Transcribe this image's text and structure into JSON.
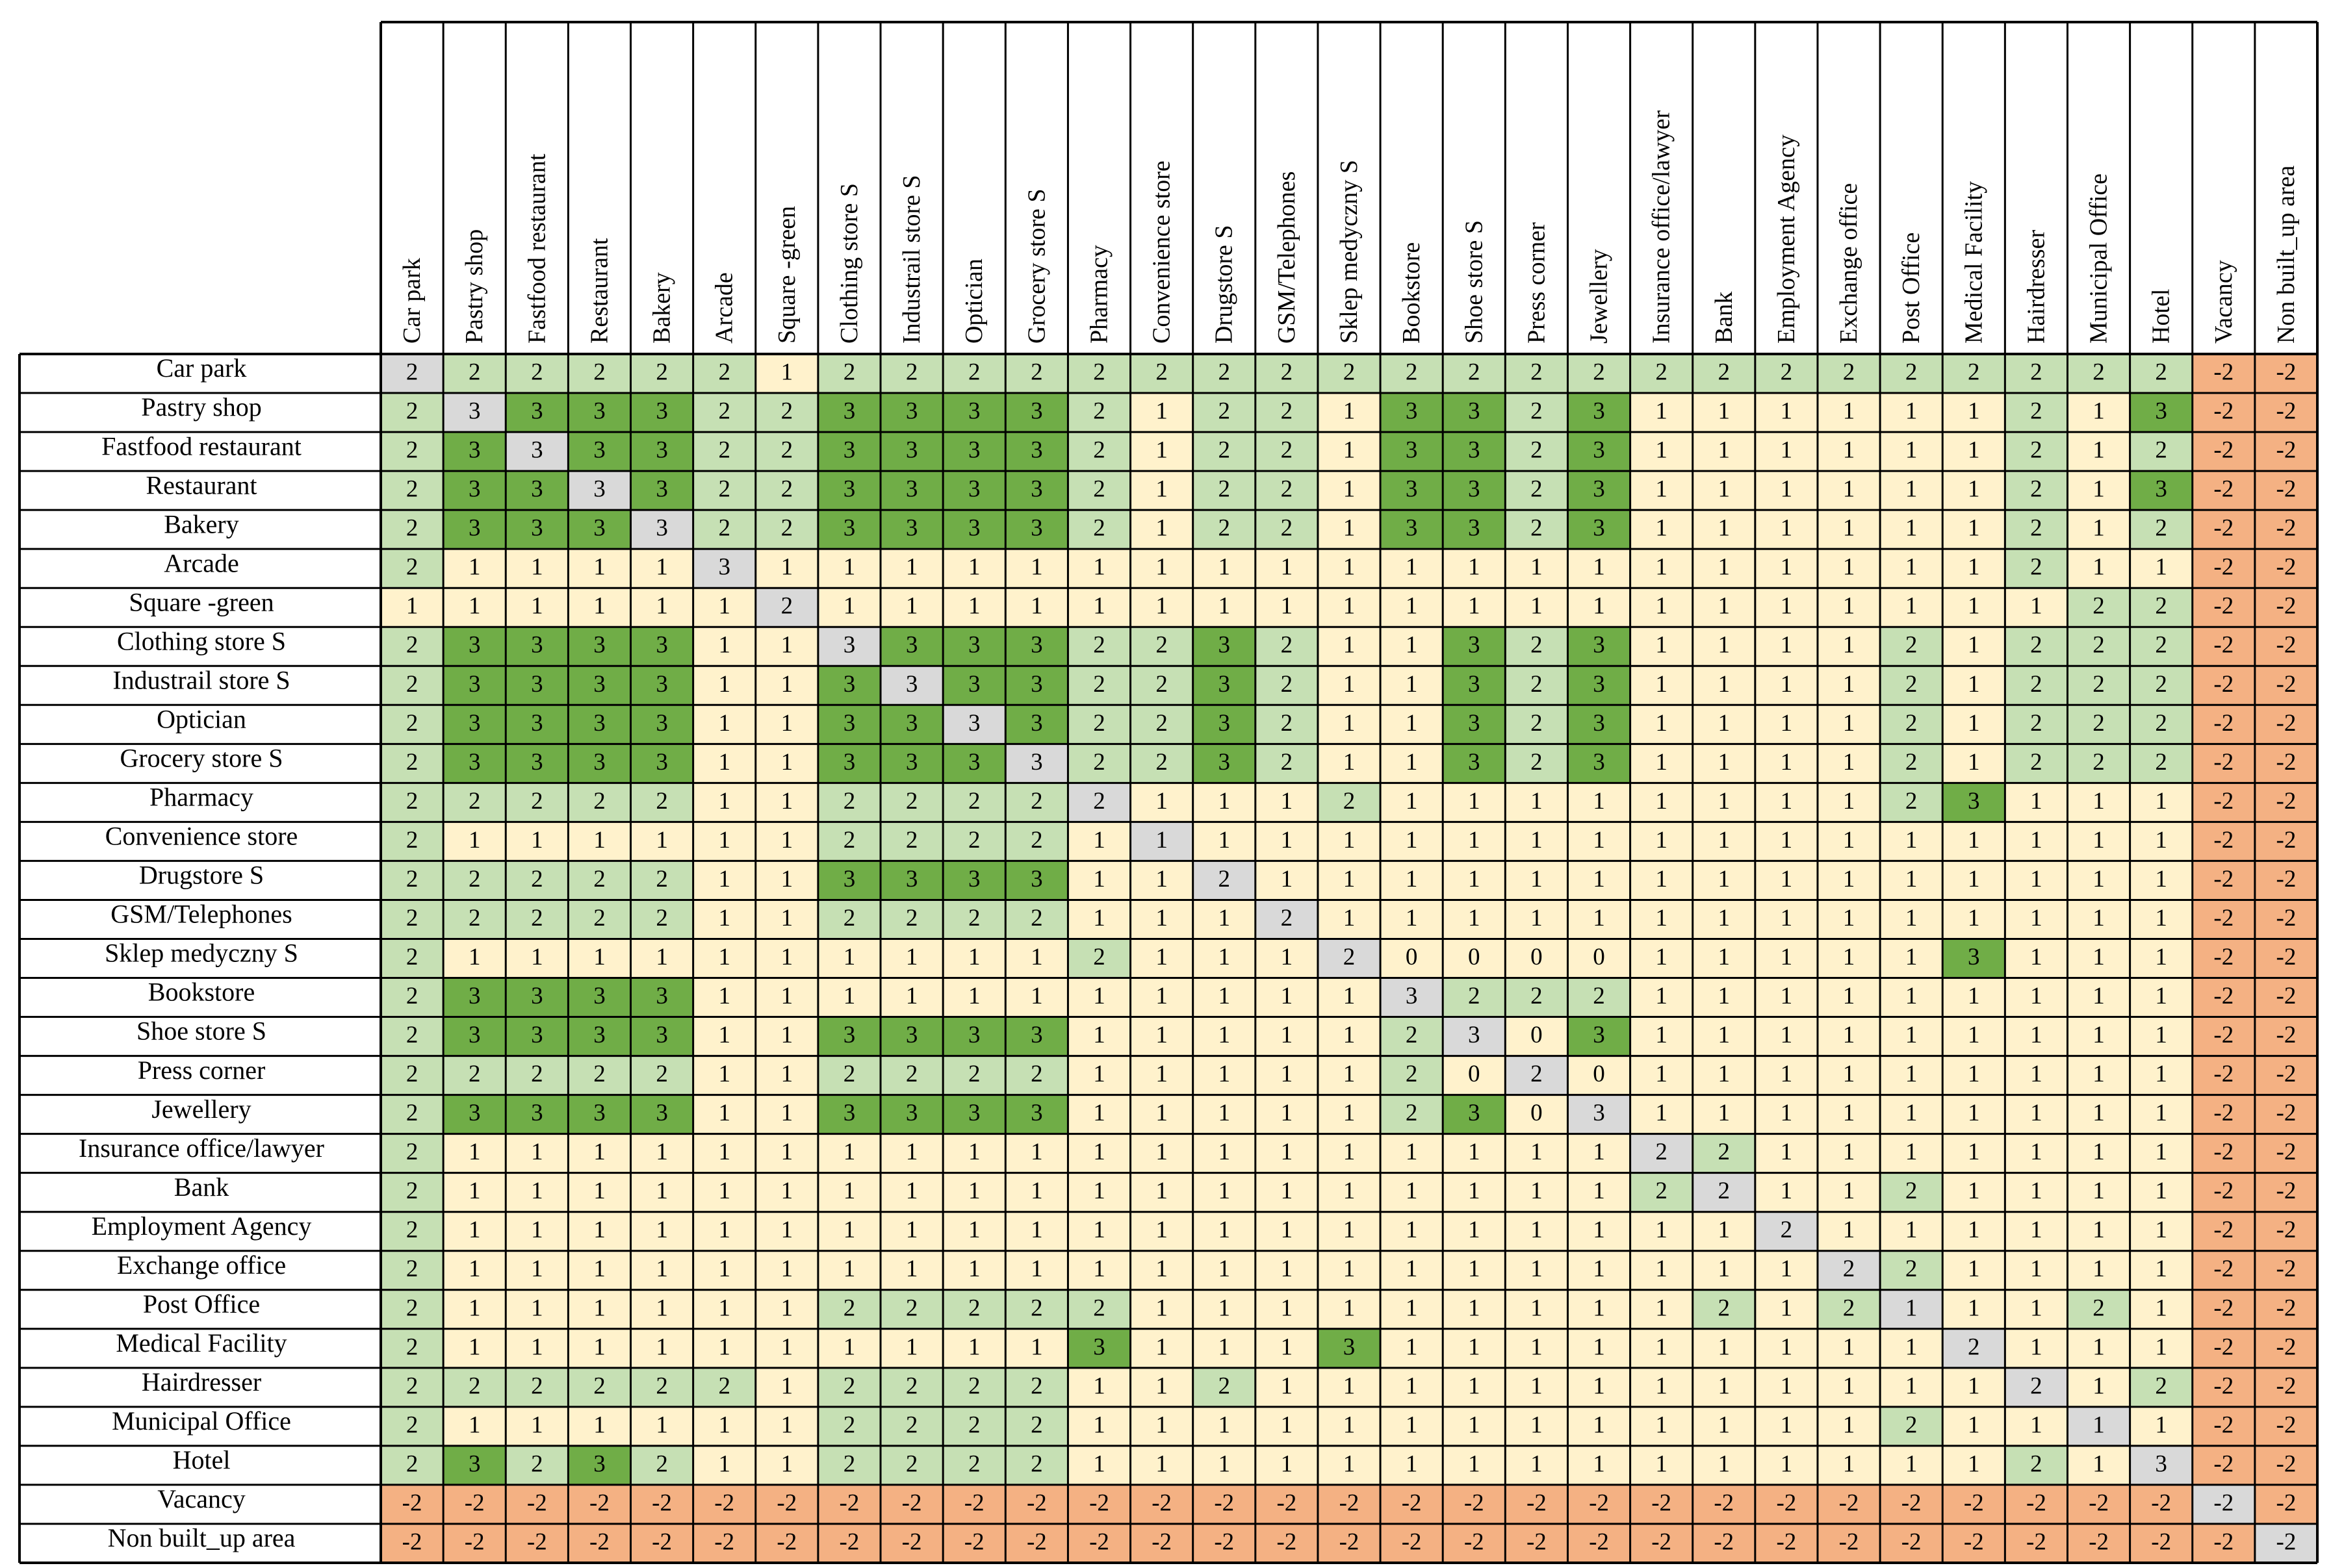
{
  "chart_data": {
    "type": "heatmap",
    "title": "",
    "labels": [
      "Car park",
      "Pastry shop",
      "Fastfood restaurant",
      "Restaurant",
      "Bakery",
      "Arcade",
      "Square -green",
      "Clothing store S",
      "Industrail store S",
      "Optician",
      "Grocery store S",
      "Pharmacy",
      "Convenience store",
      "Drugstore S",
      "GSM/Telephones",
      "Sklep medyczny S",
      "Bookstore",
      "Shoe store S",
      "Press corner",
      "Jewellery",
      "Insurance office/lawyer",
      "Bank",
      "Employment Agency",
      "Exchange office",
      "Post Office",
      "Medical Facility",
      "Hairdresser",
      "Municipal Office",
      "Hotel",
      "Vacancy",
      "Non built_up area"
    ],
    "values": [
      [
        2,
        2,
        2,
        2,
        2,
        2,
        1,
        2,
        2,
        2,
        2,
        2,
        2,
        2,
        2,
        2,
        2,
        2,
        2,
        2,
        2,
        2,
        2,
        2,
        2,
        2,
        2,
        2,
        2,
        -2,
        -2
      ],
      [
        2,
        3,
        3,
        3,
        3,
        2,
        2,
        3,
        3,
        3,
        3,
        2,
        1,
        2,
        2,
        1,
        3,
        3,
        2,
        3,
        1,
        1,
        1,
        1,
        1,
        1,
        2,
        1,
        3,
        -2,
        -2
      ],
      [
        2,
        3,
        3,
        3,
        3,
        2,
        2,
        3,
        3,
        3,
        3,
        2,
        1,
        2,
        2,
        1,
        3,
        3,
        2,
        3,
        1,
        1,
        1,
        1,
        1,
        1,
        2,
        1,
        2,
        -2,
        -2
      ],
      [
        2,
        3,
        3,
        3,
        3,
        2,
        2,
        3,
        3,
        3,
        3,
        2,
        1,
        2,
        2,
        1,
        3,
        3,
        2,
        3,
        1,
        1,
        1,
        1,
        1,
        1,
        2,
        1,
        3,
        -2,
        -2
      ],
      [
        2,
        3,
        3,
        3,
        3,
        2,
        2,
        3,
        3,
        3,
        3,
        2,
        1,
        2,
        2,
        1,
        3,
        3,
        2,
        3,
        1,
        1,
        1,
        1,
        1,
        1,
        2,
        1,
        2,
        -2,
        -2
      ],
      [
        2,
        1,
        1,
        1,
        1,
        3,
        1,
        1,
        1,
        1,
        1,
        1,
        1,
        1,
        1,
        1,
        1,
        1,
        1,
        1,
        1,
        1,
        1,
        1,
        1,
        1,
        2,
        1,
        1,
        -2,
        -2
      ],
      [
        1,
        1,
        1,
        1,
        1,
        1,
        2,
        1,
        1,
        1,
        1,
        1,
        1,
        1,
        1,
        1,
        1,
        1,
        1,
        1,
        1,
        1,
        1,
        1,
        1,
        1,
        1,
        2,
        2,
        -2,
        -2
      ],
      [
        2,
        3,
        3,
        3,
        3,
        1,
        1,
        3,
        3,
        3,
        3,
        2,
        2,
        3,
        2,
        1,
        1,
        3,
        2,
        3,
        1,
        1,
        1,
        1,
        2,
        1,
        2,
        2,
        2,
        -2,
        -2
      ],
      [
        2,
        3,
        3,
        3,
        3,
        1,
        1,
        3,
        3,
        3,
        3,
        2,
        2,
        3,
        2,
        1,
        1,
        3,
        2,
        3,
        1,
        1,
        1,
        1,
        2,
        1,
        2,
        2,
        2,
        -2,
        -2
      ],
      [
        2,
        3,
        3,
        3,
        3,
        1,
        1,
        3,
        3,
        3,
        3,
        2,
        2,
        3,
        2,
        1,
        1,
        3,
        2,
        3,
        1,
        1,
        1,
        1,
        2,
        1,
        2,
        2,
        2,
        -2,
        -2
      ],
      [
        2,
        3,
        3,
        3,
        3,
        1,
        1,
        3,
        3,
        3,
        3,
        2,
        2,
        3,
        2,
        1,
        1,
        3,
        2,
        3,
        1,
        1,
        1,
        1,
        2,
        1,
        2,
        2,
        2,
        -2,
        -2
      ],
      [
        2,
        2,
        2,
        2,
        2,
        1,
        1,
        2,
        2,
        2,
        2,
        2,
        1,
        1,
        1,
        2,
        1,
        1,
        1,
        1,
        1,
        1,
        1,
        1,
        2,
        3,
        1,
        1,
        1,
        -2,
        -2
      ],
      [
        2,
        1,
        1,
        1,
        1,
        1,
        1,
        2,
        2,
        2,
        2,
        1,
        1,
        1,
        1,
        1,
        1,
        1,
        1,
        1,
        1,
        1,
        1,
        1,
        1,
        1,
        1,
        1,
        1,
        -2,
        -2
      ],
      [
        2,
        2,
        2,
        2,
        2,
        1,
        1,
        3,
        3,
        3,
        3,
        1,
        1,
        2,
        1,
        1,
        1,
        1,
        1,
        1,
        1,
        1,
        1,
        1,
        1,
        1,
        1,
        1,
        1,
        -2,
        -2
      ],
      [
        2,
        2,
        2,
        2,
        2,
        1,
        1,
        2,
        2,
        2,
        2,
        1,
        1,
        1,
        2,
        1,
        1,
        1,
        1,
        1,
        1,
        1,
        1,
        1,
        1,
        1,
        1,
        1,
        1,
        -2,
        -2
      ],
      [
        2,
        1,
        1,
        1,
        1,
        1,
        1,
        1,
        1,
        1,
        1,
        2,
        1,
        1,
        1,
        2,
        0,
        0,
        0,
        0,
        1,
        1,
        1,
        1,
        1,
        3,
        1,
        1,
        1,
        -2,
        -2
      ],
      [
        2,
        3,
        3,
        3,
        3,
        1,
        1,
        1,
        1,
        1,
        1,
        1,
        1,
        1,
        1,
        1,
        3,
        2,
        2,
        2,
        1,
        1,
        1,
        1,
        1,
        1,
        1,
        1,
        1,
        -2,
        -2
      ],
      [
        2,
        3,
        3,
        3,
        3,
        1,
        1,
        3,
        3,
        3,
        3,
        1,
        1,
        1,
        1,
        1,
        2,
        3,
        0,
        3,
        1,
        1,
        1,
        1,
        1,
        1,
        1,
        1,
        1,
        -2,
        -2
      ],
      [
        2,
        2,
        2,
        2,
        2,
        1,
        1,
        2,
        2,
        2,
        2,
        1,
        1,
        1,
        1,
        1,
        2,
        0,
        2,
        0,
        1,
        1,
        1,
        1,
        1,
        1,
        1,
        1,
        1,
        -2,
        -2
      ],
      [
        2,
        3,
        3,
        3,
        3,
        1,
        1,
        3,
        3,
        3,
        3,
        1,
        1,
        1,
        1,
        1,
        2,
        3,
        0,
        3,
        1,
        1,
        1,
        1,
        1,
        1,
        1,
        1,
        1,
        -2,
        -2
      ],
      [
        2,
        1,
        1,
        1,
        1,
        1,
        1,
        1,
        1,
        1,
        1,
        1,
        1,
        1,
        1,
        1,
        1,
        1,
        1,
        1,
        2,
        2,
        1,
        1,
        1,
        1,
        1,
        1,
        1,
        -2,
        -2
      ],
      [
        2,
        1,
        1,
        1,
        1,
        1,
        1,
        1,
        1,
        1,
        1,
        1,
        1,
        1,
        1,
        1,
        1,
        1,
        1,
        1,
        2,
        2,
        1,
        1,
        2,
        1,
        1,
        1,
        1,
        -2,
        -2
      ],
      [
        2,
        1,
        1,
        1,
        1,
        1,
        1,
        1,
        1,
        1,
        1,
        1,
        1,
        1,
        1,
        1,
        1,
        1,
        1,
        1,
        1,
        1,
        2,
        1,
        1,
        1,
        1,
        1,
        1,
        -2,
        -2
      ],
      [
        2,
        1,
        1,
        1,
        1,
        1,
        1,
        1,
        1,
        1,
        1,
        1,
        1,
        1,
        1,
        1,
        1,
        1,
        1,
        1,
        1,
        1,
        1,
        2,
        2,
        1,
        1,
        1,
        1,
        -2,
        -2
      ],
      [
        2,
        1,
        1,
        1,
        1,
        1,
        1,
        2,
        2,
        2,
        2,
        2,
        1,
        1,
        1,
        1,
        1,
        1,
        1,
        1,
        1,
        2,
        1,
        2,
        1,
        1,
        1,
        2,
        1,
        -2,
        -2
      ],
      [
        2,
        1,
        1,
        1,
        1,
        1,
        1,
        1,
        1,
        1,
        1,
        3,
        1,
        1,
        1,
        3,
        1,
        1,
        1,
        1,
        1,
        1,
        1,
        1,
        1,
        2,
        1,
        1,
        1,
        -2,
        -2
      ],
      [
        2,
        2,
        2,
        2,
        2,
        2,
        1,
        2,
        2,
        2,
        2,
        1,
        1,
        2,
        1,
        1,
        1,
        1,
        1,
        1,
        1,
        1,
        1,
        1,
        1,
        1,
        2,
        1,
        2,
        -2,
        -2
      ],
      [
        2,
        1,
        1,
        1,
        1,
        1,
        1,
        2,
        2,
        2,
        2,
        1,
        1,
        1,
        1,
        1,
        1,
        1,
        1,
        1,
        1,
        1,
        1,
        1,
        2,
        1,
        1,
        1,
        1,
        -2,
        -2
      ],
      [
        2,
        3,
        2,
        3,
        2,
        1,
        1,
        2,
        2,
        2,
        2,
        1,
        1,
        1,
        1,
        1,
        1,
        1,
        1,
        1,
        1,
        1,
        1,
        1,
        1,
        1,
        2,
        1,
        3,
        -2,
        -2
      ],
      [
        -2,
        -2,
        -2,
        -2,
        -2,
        -2,
        -2,
        -2,
        -2,
        -2,
        -2,
        -2,
        -2,
        -2,
        -2,
        -2,
        -2,
        -2,
        -2,
        -2,
        -2,
        -2,
        -2,
        -2,
        -2,
        -2,
        -2,
        -2,
        -2,
        -2,
        -2
      ],
      [
        -2,
        -2,
        -2,
        -2,
        -2,
        -2,
        -2,
        -2,
        -2,
        -2,
        -2,
        -2,
        -2,
        -2,
        -2,
        -2,
        -2,
        -2,
        -2,
        -2,
        -2,
        -2,
        -2,
        -2,
        -2,
        -2,
        -2,
        -2,
        -2,
        -2,
        -2
      ]
    ],
    "diagonal_color": "#d9d9d9",
    "value_colors": {
      "3": "#70ad47",
      "2": "#c6e0b4",
      "1": "#fff2cc",
      "0": "#fff2cc",
      "-2": "#f4b183"
    },
    "grid_color": "#000000"
  }
}
